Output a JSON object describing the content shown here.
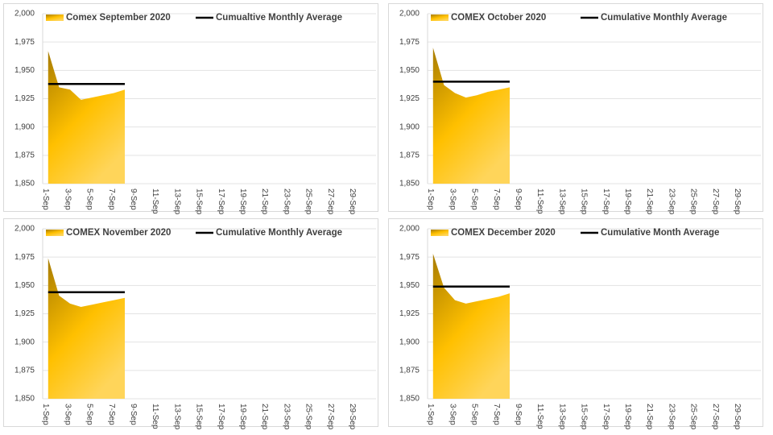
{
  "chart_data": [
    {
      "type": "area",
      "categories": [
        "1-Sep",
        null,
        "3-Sep",
        null,
        "5-Sep",
        null,
        "7-Sep",
        null,
        "9-Sep",
        null,
        "11-Sep",
        null,
        "13-Sep",
        null,
        "15-Sep",
        null,
        "17-Sep",
        null,
        "19-Sep",
        null,
        "21-Sep",
        null,
        "23-Sep",
        null,
        "25-Sep",
        null,
        "27-Sep",
        null,
        "29-Sep",
        null
      ],
      "series": [
        {
          "name": "Comex September 2020",
          "color": "#ffc000",
          "values": [
            1967,
            1935,
            1933,
            1924,
            1926,
            1928,
            1930,
            1933,
            null,
            null,
            null,
            null,
            null,
            null,
            null,
            null,
            null,
            null,
            null,
            null,
            null,
            null,
            null,
            null,
            null,
            null,
            null,
            null,
            null,
            null
          ]
        },
        {
          "name": "Cumualtive Monthly Average",
          "color": "#000000",
          "values": [
            1938,
            1938,
            1938,
            1938,
            1938,
            1938,
            1938,
            1938,
            null,
            null,
            null,
            null,
            null,
            null,
            null,
            null,
            null,
            null,
            null,
            null,
            null,
            null,
            null,
            null,
            null,
            null,
            null,
            null,
            null,
            null
          ]
        }
      ],
      "ylim": [
        1850,
        2000
      ],
      "yticks": [
        {
          "value": 1850,
          "label": "1,850"
        },
        {
          "value": 1875,
          "label": "1,875"
        },
        {
          "value": 1900,
          "label": "1,900"
        },
        {
          "value": 1925,
          "label": "1,925"
        },
        {
          "value": 1950,
          "label": "1,950"
        },
        {
          "value": 1975,
          "label": "1,975"
        },
        {
          "value": 2000,
          "label": "2,000"
        }
      ],
      "grid": true
    },
    {
      "type": "area",
      "categories": [
        "1-Sep",
        null,
        "3-Sep",
        null,
        "5-Sep",
        null,
        "7-Sep",
        null,
        "9-Sep",
        null,
        "11-Sep",
        null,
        "13-Sep",
        null,
        "15-Sep",
        null,
        "17-Sep",
        null,
        "19-Sep",
        null,
        "21-Sep",
        null,
        "23-Sep",
        null,
        "25-Sep",
        null,
        "27-Sep",
        null,
        "29-Sep",
        null
      ],
      "series": [
        {
          "name": "COMEX October 2020",
          "color": "#ffc000",
          "values": [
            1970,
            1937,
            1930,
            1926,
            1928,
            1931,
            1933,
            1935,
            null,
            null,
            null,
            null,
            null,
            null,
            null,
            null,
            null,
            null,
            null,
            null,
            null,
            null,
            null,
            null,
            null,
            null,
            null,
            null,
            null,
            null
          ]
        },
        {
          "name": "Cumulative Monthly Average",
          "color": "#000000",
          "values": [
            1940,
            1940,
            1940,
            1940,
            1940,
            1940,
            1940,
            1940,
            null,
            null,
            null,
            null,
            null,
            null,
            null,
            null,
            null,
            null,
            null,
            null,
            null,
            null,
            null,
            null,
            null,
            null,
            null,
            null,
            null,
            null
          ]
        }
      ],
      "ylim": [
        1850,
        2000
      ],
      "yticks": [
        {
          "value": 1850,
          "label": "1,850"
        },
        {
          "value": 1875,
          "label": "1,875"
        },
        {
          "value": 1900,
          "label": "1,900"
        },
        {
          "value": 1925,
          "label": "1,925"
        },
        {
          "value": 1950,
          "label": "1,950"
        },
        {
          "value": 1975,
          "label": "1,975"
        },
        {
          "value": 2000,
          "label": "2,000"
        }
      ],
      "grid": true
    },
    {
      "type": "area",
      "categories": [
        "1-Sep",
        null,
        "3-Sep",
        null,
        "5-Sep",
        null,
        "7-Sep",
        null,
        "9-Sep",
        null,
        "11-Sep",
        null,
        "13-Sep",
        null,
        "15-Sep",
        null,
        "17-Sep",
        null,
        "19-Sep",
        null,
        "21-Sep",
        null,
        "23-Sep",
        null,
        "25-Sep",
        null,
        "27-Sep",
        null,
        "29-Sep",
        null
      ],
      "series": [
        {
          "name": "COMEX November 2020",
          "color": "#ffc000",
          "values": [
            1974,
            1941,
            1934,
            1931,
            1933,
            1935,
            1937,
            1939,
            null,
            null,
            null,
            null,
            null,
            null,
            null,
            null,
            null,
            null,
            null,
            null,
            null,
            null,
            null,
            null,
            null,
            null,
            null,
            null,
            null,
            null
          ]
        },
        {
          "name": "Cumulative Monthly Average",
          "color": "#000000",
          "values": [
            1944,
            1944,
            1944,
            1944,
            1944,
            1944,
            1944,
            1944,
            null,
            null,
            null,
            null,
            null,
            null,
            null,
            null,
            null,
            null,
            null,
            null,
            null,
            null,
            null,
            null,
            null,
            null,
            null,
            null,
            null,
            null
          ]
        }
      ],
      "ylim": [
        1850,
        2000
      ],
      "yticks": [
        {
          "value": 1850,
          "label": "1,850"
        },
        {
          "value": 1875,
          "label": "1,875"
        },
        {
          "value": 1900,
          "label": "1,900"
        },
        {
          "value": 1925,
          "label": "1,925"
        },
        {
          "value": 1950,
          "label": "1,950"
        },
        {
          "value": 1975,
          "label": "1,975"
        },
        {
          "value": 2000,
          "label": "2,000"
        }
      ],
      "grid": true
    },
    {
      "type": "area",
      "categories": [
        "1-Sep",
        null,
        "3-Sep",
        null,
        "5-Sep",
        null,
        "7-Sep",
        null,
        "9-Sep",
        null,
        "11-Sep",
        null,
        "13-Sep",
        null,
        "15-Sep",
        null,
        "17-Sep",
        null,
        "19-Sep",
        null,
        "21-Sep",
        null,
        "23-Sep",
        null,
        "25-Sep",
        null,
        "27-Sep",
        null,
        "29-Sep",
        null
      ],
      "series": [
        {
          "name": "COMEX December 2020",
          "color": "#ffc000",
          "values": [
            1978,
            1948,
            1937,
            1934,
            1936,
            1938,
            1940,
            1943,
            null,
            null,
            null,
            null,
            null,
            null,
            null,
            null,
            null,
            null,
            null,
            null,
            null,
            null,
            null,
            null,
            null,
            null,
            null,
            null,
            null,
            null
          ]
        },
        {
          "name": "Cumulative Month Average",
          "color": "#000000",
          "values": [
            1949,
            1949,
            1949,
            1949,
            1949,
            1949,
            1949,
            1949,
            null,
            null,
            null,
            null,
            null,
            null,
            null,
            null,
            null,
            null,
            null,
            null,
            null,
            null,
            null,
            null,
            null,
            null,
            null,
            null,
            null,
            null
          ]
        }
      ],
      "ylim": [
        1850,
        2000
      ],
      "yticks": [
        {
          "value": 1850,
          "label": "1,850"
        },
        {
          "value": 1875,
          "label": "1,875"
        },
        {
          "value": 1900,
          "label": "1,900"
        },
        {
          "value": 1925,
          "label": "1,925"
        },
        {
          "value": 1950,
          "label": "1,950"
        },
        {
          "value": 1975,
          "label": "1,975"
        },
        {
          "value": 2000,
          "label": "2,000"
        }
      ],
      "grid": true
    }
  ]
}
